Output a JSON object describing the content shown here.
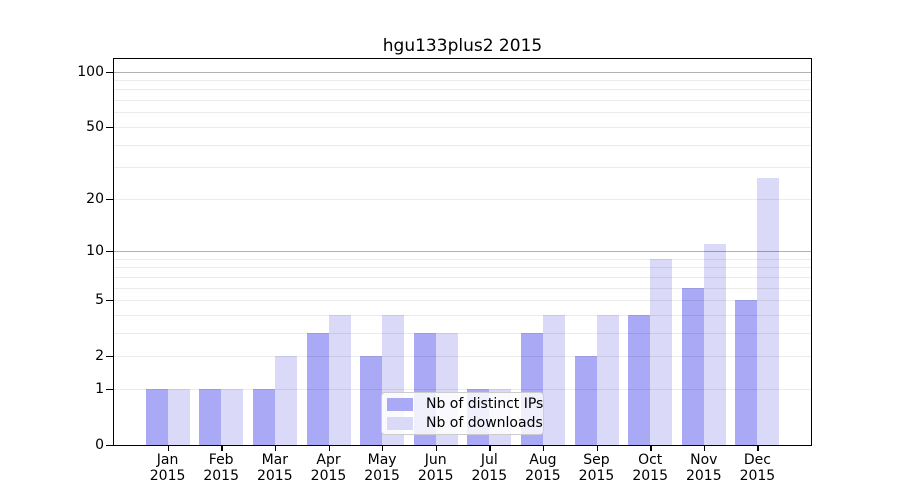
{
  "title": "hgu133plus2 2015",
  "colors": {
    "distinct_ips": "#a9a9f5",
    "downloads": "#dadaf8",
    "axis": "#000000",
    "legend_border": "#cccccc"
  },
  "legend": {
    "items": [
      {
        "label": "Nb of distinct IPs",
        "color_key": "distinct_ips"
      },
      {
        "label": "Nb of downloads",
        "color_key": "downloads"
      }
    ]
  },
  "chart_data": {
    "type": "bar",
    "title": "hgu133plus2 2015",
    "categories": [
      "Jan 2015",
      "Feb 2015",
      "Mar 2015",
      "Apr 2015",
      "May 2015",
      "Jun 2015",
      "Jul 2015",
      "Aug 2015",
      "Sep 2015",
      "Oct 2015",
      "Nov 2015",
      "Dec 2015"
    ],
    "month_labels": [
      "Jan",
      "Feb",
      "Mar",
      "Apr",
      "May",
      "Jun",
      "Jul",
      "Aug",
      "Sep",
      "Oct",
      "Nov",
      "Dec"
    ],
    "year_label": "2015",
    "series": [
      {
        "name": "Nb of distinct IPs",
        "color_key": "distinct_ips",
        "values": [
          1,
          1,
          1,
          3,
          2,
          3,
          1,
          3,
          2,
          4,
          6,
          5
        ]
      },
      {
        "name": "Nb of downloads",
        "color_key": "downloads",
        "values": [
          1,
          1,
          2,
          4,
          4,
          3,
          1,
          4,
          4,
          9,
          11,
          26
        ]
      }
    ],
    "yscale": "log1p",
    "ylim": [
      0,
      117
    ],
    "y_ticks": [
      0,
      1,
      2,
      5,
      10,
      20,
      50,
      100
    ],
    "grid_values_minor": [
      1,
      2,
      3,
      4,
      5,
      6,
      7,
      8,
      9,
      20,
      30,
      40,
      50,
      60,
      70,
      80,
      90
    ],
    "grid_values_major": [
      10,
      100
    ],
    "grid": true,
    "legend_position": "lower center",
    "xlabel": "",
    "ylabel": ""
  }
}
